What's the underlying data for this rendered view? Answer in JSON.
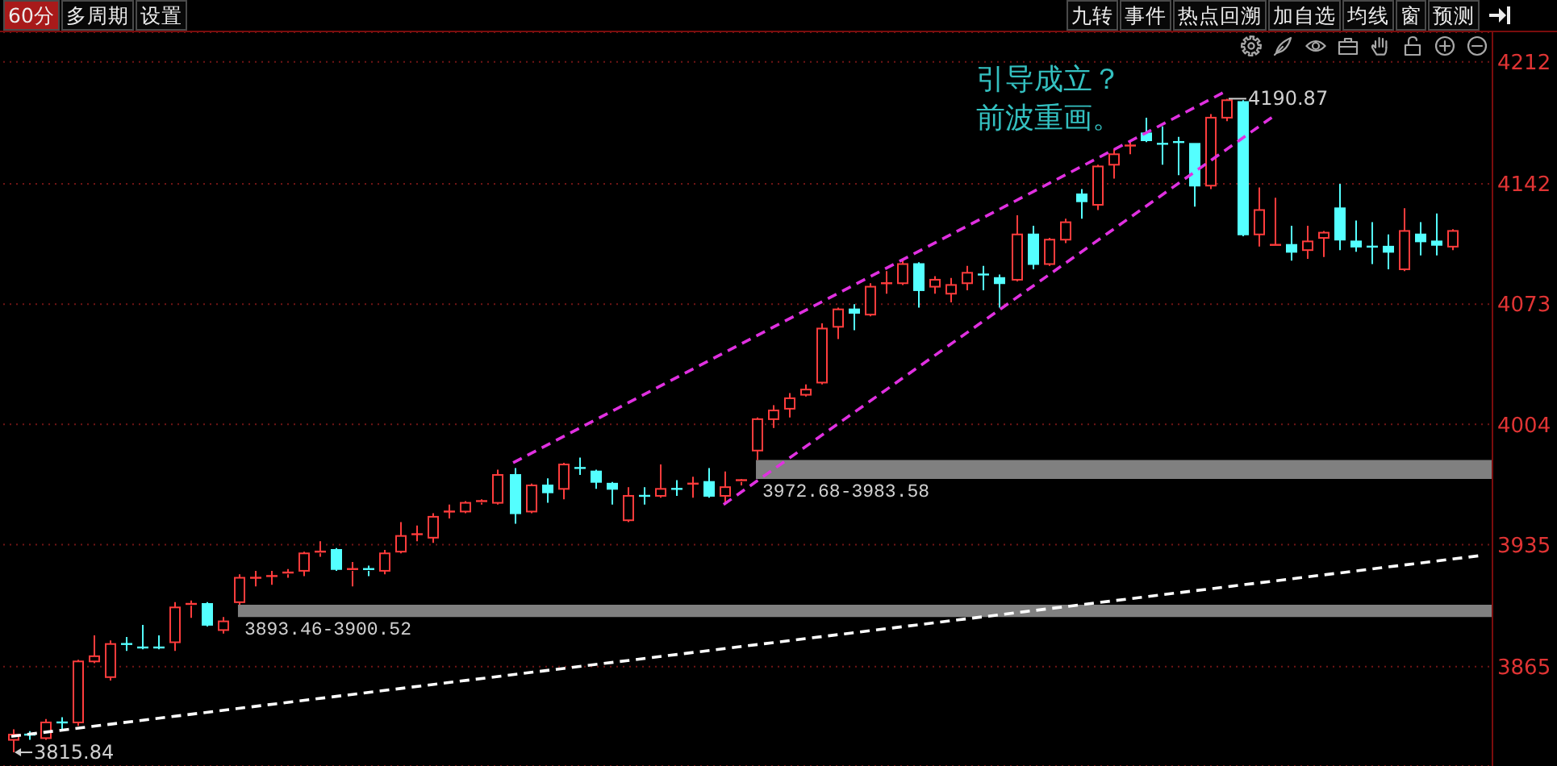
{
  "chart_data": {
    "type": "candlestick",
    "categories": [
      null,
      null,
      null,
      null,
      null,
      null,
      null,
      null,
      null,
      null,
      null,
      null,
      null,
      null,
      null,
      null,
      null,
      null,
      null,
      null,
      null,
      null,
      null,
      null,
      null,
      null,
      null,
      null,
      null,
      null,
      null,
      null,
      null,
      null,
      null,
      null,
      null,
      null,
      null,
      null,
      null,
      null,
      null,
      null,
      null,
      null,
      null,
      null,
      null,
      null,
      null,
      null,
      null,
      null,
      null,
      null,
      null,
      null,
      null,
      null,
      null,
      null,
      null,
      null,
      null,
      null,
      null,
      null,
      null,
      null,
      null,
      null,
      null,
      null,
      null,
      null,
      null,
      null,
      null,
      null,
      null,
      null,
      null,
      null,
      null,
      null,
      null,
      null,
      null,
      null,
      null,
      null
    ],
    "ohlc": [
      [
        3823,
        3829,
        3815.84,
        3826
      ],
      [
        3826,
        3828,
        3823,
        3826
      ],
      [
        3824,
        3835,
        3823,
        3833
      ],
      [
        3833,
        3836,
        3828,
        3833
      ],
      [
        3833,
        3869,
        3831,
        3868
      ],
      [
        3868,
        3883,
        3867,
        3871
      ],
      [
        3859,
        3880,
        3857,
        3878
      ],
      [
        3878,
        3882,
        3874,
        3878
      ],
      [
        3876,
        3889,
        3875,
        3876
      ],
      [
        3876,
        3883,
        3875,
        3876
      ],
      [
        3879,
        3902,
        3874,
        3899
      ],
      [
        3900,
        3903,
        3893,
        3901
      ],
      [
        3901,
        3902,
        3888,
        3889
      ],
      [
        3886,
        3893.46,
        3884,
        3891
      ],
      [
        3902,
        3918,
        3900.52,
        3916
      ],
      [
        3916,
        3920,
        3911,
        3916
      ],
      [
        3917,
        3920,
        3912,
        3917
      ],
      [
        3918,
        3921,
        3916,
        3919
      ],
      [
        3920,
        3931,
        3917,
        3930
      ],
      [
        3930,
        3937,
        3928,
        3931
      ],
      [
        3932,
        3933,
        3920,
        3921
      ],
      [
        3920,
        3925,
        3911,
        3921
      ],
      [
        3921,
        3923,
        3917,
        3920
      ],
      [
        3920,
        3932,
        3918,
        3930
      ],
      [
        3931,
        3948,
        3930,
        3940
      ],
      [
        3941,
        3946,
        3937,
        3941
      ],
      [
        3939,
        3953,
        3936,
        3951
      ],
      [
        3954,
        3958,
        3950,
        3954
      ],
      [
        3954,
        3960,
        3953,
        3959
      ],
      [
        3959,
        3961,
        3958,
        3960
      ],
      [
        3959,
        3978,
        3958,
        3975
      ],
      [
        3975,
        3979,
        3947,
        3953
      ],
      [
        3954,
        3970,
        3953,
        3969
      ],
      [
        3969,
        3973,
        3959,
        3965
      ],
      [
        3967,
        3982,
        3961,
        3981
      ],
      [
        3979,
        3985,
        3975,
        3979
      ],
      [
        3977,
        3978,
        3967,
        3971
      ],
      [
        3970,
        3971,
        3958,
        3967
      ],
      [
        3949,
        3968,
        3948,
        3963
      ],
      [
        3963,
        3968,
        3958,
        3963
      ],
      [
        3963,
        3981,
        3962,
        3967
      ],
      [
        3967,
        3972,
        3963,
        3967
      ],
      [
        3970,
        3974,
        3962,
        3970
      ],
      [
        3971,
        3979,
        3962,
        3963
      ],
      [
        3963,
        3977,
        3958,
        3968
      ],
      [
        3971,
        3972.68,
        3969,
        3972
      ],
      [
        3989,
        4008,
        3983.58,
        4007
      ],
      [
        4007,
        4015,
        4002,
        4012
      ],
      [
        4013,
        4022,
        4008,
        4019
      ],
      [
        4021,
        4027,
        4020,
        4024
      ],
      [
        4028,
        4062,
        4027,
        4059
      ],
      [
        4060,
        4071,
        4053,
        4070
      ],
      [
        4070,
        4073,
        4058,
        4068
      ],
      [
        4067,
        4085,
        4066,
        4083
      ],
      [
        4085,
        4092,
        4079,
        4085
      ],
      [
        4085,
        4099,
        4084,
        4096
      ],
      [
        4096,
        4097,
        4071,
        4081
      ],
      [
        4083,
        4089,
        4079,
        4087
      ],
      [
        4079,
        4088,
        4074,
        4084
      ],
      [
        4085,
        4095,
        4081,
        4091
      ],
      [
        4090,
        4095,
        4081,
        4090
      ],
      [
        4088,
        4090,
        4071,
        4085
      ],
      [
        4087,
        4124,
        4086,
        4113
      ],
      [
        4113,
        4118,
        4093,
        4096
      ],
      [
        4096,
        4111,
        4095,
        4110
      ],
      [
        4110,
        4122,
        4108,
        4120
      ],
      [
        4136,
        4139,
        4122,
        4132
      ],
      [
        4130,
        4153,
        4127,
        4152
      ],
      [
        4153,
        4162,
        4145,
        4159
      ],
      [
        4164,
        4167,
        4159,
        4164
      ],
      [
        4171,
        4180,
        4166,
        4167
      ],
      [
        4165,
        4175,
        4153,
        4165
      ],
      [
        4166,
        4169,
        4147,
        4166
      ],
      [
        4165,
        4165,
        4129,
        4141
      ],
      [
        4141,
        4182,
        4139,
        4180
      ],
      [
        4180,
        4190.87,
        4178,
        4190
      ],
      [
        4189,
        4190,
        4112,
        4113
      ],
      [
        4113,
        4140,
        4106,
        4127
      ],
      [
        4106,
        4134,
        4106,
        4107
      ],
      [
        4107,
        4118,
        4098,
        4103
      ],
      [
        4104,
        4118,
        4099,
        4109
      ],
      [
        4111,
        4115,
        4100,
        4114
      ],
      [
        4128,
        4142,
        4104,
        4110
      ],
      [
        4109,
        4121,
        4103,
        4106
      ],
      [
        4106,
        4120,
        4096,
        4106
      ],
      [
        4106,
        4113,
        4093,
        4103
      ],
      [
        4093,
        4128,
        4092,
        4115
      ],
      [
        4113,
        4120,
        4101,
        4109
      ],
      [
        4109,
        4125,
        4101,
        4107
      ],
      [
        4106,
        4116,
        4104,
        4115
      ],
      null,
      null
    ],
    "colors": [
      "#ff3c3c",
      "#54ffff",
      "#ff3c3c",
      "#54ffff",
      "#ff3c3c",
      "#ff3c3c",
      "#ff3c3c",
      "#54ffff",
      "#54ffff",
      "#54ffff",
      "#ff3c3c",
      "#ff3c3c",
      "#54ffff",
      "#ff3c3c",
      "#ff3c3c",
      "#ff3c3c",
      "#ff3c3c",
      "#ff3c3c",
      "#ff3c3c",
      "#ff3c3c",
      "#54ffff",
      "#ff3c3c",
      "#54ffff",
      "#ff3c3c",
      "#ff3c3c",
      "#ff3c3c",
      "#ff3c3c",
      "#ff3c3c",
      "#ff3c3c",
      "#ff3c3c",
      "#ff3c3c",
      "#54ffff",
      "#ff3c3c",
      "#54ffff",
      "#ff3c3c",
      "#54ffff",
      "#54ffff",
      "#54ffff",
      "#ff3c3c",
      "#54ffff",
      "#ff3c3c",
      "#54ffff",
      "#ff3c3c",
      "#54ffff",
      "#ff3c3c",
      "#ff3c3c",
      "#ff3c3c",
      "#ff3c3c",
      "#ff3c3c",
      "#ff3c3c",
      "#ff3c3c",
      "#ff3c3c",
      "#54ffff",
      "#ff3c3c",
      "#ff3c3c",
      "#ff3c3c",
      "#54ffff",
      "#ff3c3c",
      "#ff3c3c",
      "#ff3c3c",
      "#54ffff",
      "#54ffff",
      "#ff3c3c",
      "#54ffff",
      "#ff3c3c",
      "#ff3c3c",
      "#54ffff",
      "#ff3c3c",
      "#ff3c3c",
      "#ff3c3c",
      "#54ffff",
      "#54ffff",
      "#54ffff",
      "#54ffff",
      "#ff3c3c",
      "#ff3c3c",
      "#54ffff",
      "#ff3c3c",
      "#ff3c3c",
      "#54ffff",
      "#ff3c3c",
      "#ff3c3c",
      "#54ffff",
      "#54ffff",
      "#54ffff",
      "#54ffff",
      "#ff3c3c",
      "#54ffff",
      "#54ffff",
      "#ff3c3c",
      null,
      null
    ],
    "series": [
      {
        "type": "line",
        "color": "#ffffff",
        "values": [
          3825,
          null,
          null,
          null,
          null,
          null,
          null,
          null,
          null,
          null,
          null,
          null,
          null,
          null,
          null,
          null,
          null,
          null,
          null,
          null,
          null,
          null,
          null,
          null,
          null,
          null,
          null,
          null,
          null,
          null,
          null,
          null,
          null,
          null,
          null,
          null,
          null,
          null,
          null,
          null,
          null,
          null,
          null,
          null,
          null,
          null,
          null,
          null,
          null,
          null,
          null,
          null,
          null,
          null,
          null,
          null,
          null,
          null,
          null,
          null,
          null,
          null,
          null,
          null,
          null,
          null,
          null,
          null,
          null,
          null,
          null,
          null,
          null,
          null,
          null,
          null,
          null,
          null,
          null,
          null,
          null,
          null,
          null,
          null,
          null,
          null,
          null,
          null,
          null,
          null,
          null,
          3929
        ]
      },
      {
        "type": "line",
        "color": "#e030e0",
        "values": [
          null,
          null,
          null,
          null,
          null,
          null,
          null,
          null,
          null,
          null,
          null,
          null,
          null,
          null,
          null,
          null,
          null,
          null,
          null,
          null,
          null,
          null,
          null,
          null,
          null,
          null,
          null,
          null,
          null,
          null,
          null,
          3982,
          null,
          null,
          null,
          null,
          null,
          null,
          null,
          null,
          null,
          null,
          null,
          null,
          null,
          null,
          null,
          null,
          null,
          null,
          null,
          null,
          null,
          null,
          null,
          null,
          null,
          null,
          null,
          null,
          null,
          null,
          null,
          null,
          null,
          null,
          null,
          null,
          null,
          null,
          null,
          null,
          null,
          null,
          null,
          4195,
          null,
          null,
          null,
          null,
          null,
          null,
          null,
          null,
          null,
          null,
          null,
          null,
          null,
          null,
          null,
          null
        ]
      },
      {
        "type": "line",
        "color": "#e030e0",
        "values": [
          null,
          null,
          null,
          null,
          null,
          null,
          null,
          null,
          null,
          null,
          null,
          null,
          null,
          null,
          null,
          null,
          null,
          null,
          null,
          null,
          null,
          null,
          null,
          null,
          null,
          null,
          null,
          null,
          null,
          null,
          null,
          null,
          null,
          null,
          null,
          null,
          null,
          null,
          null,
          null,
          null,
          null,
          null,
          null,
          3958,
          null,
          null,
          null,
          null,
          null,
          null,
          null,
          null,
          null,
          null,
          null,
          null,
          null,
          null,
          null,
          null,
          null,
          null,
          null,
          null,
          null,
          null,
          null,
          null,
          null,
          null,
          null,
          null,
          null,
          null,
          null,
          null,
          null,
          4181,
          null,
          null,
          null,
          null,
          null,
          null,
          null,
          null,
          null,
          null,
          null,
          null,
          null
        ]
      }
    ],
    "line_style": "dashed",
    "ylim": [
      3808,
      4229
    ],
    "yticks": [
      3865,
      3935,
      4004,
      4073,
      4142,
      4212
    ],
    "tick_labels": "y",
    "grid": "y",
    "bands": [
      {
        "axis": "y",
        "from": 3893.46,
        "to": 3900.52,
        "label": "3893.46-3900.52",
        "color": "#808080"
      },
      {
        "axis": "y",
        "from": 3972.68,
        "to": 3983.58,
        "label": "3972.68-3983.58",
        "color": "#808080"
      }
    ],
    "annotations": [
      "引导成立？前波重画。",
      "60分",
      "多周期",
      "设置",
      "九转",
      "事件",
      "热点回溯",
      "加自选",
      "均线",
      "窗",
      "预测",
      "4190.87",
      "3815.84"
    ]
  }
}
